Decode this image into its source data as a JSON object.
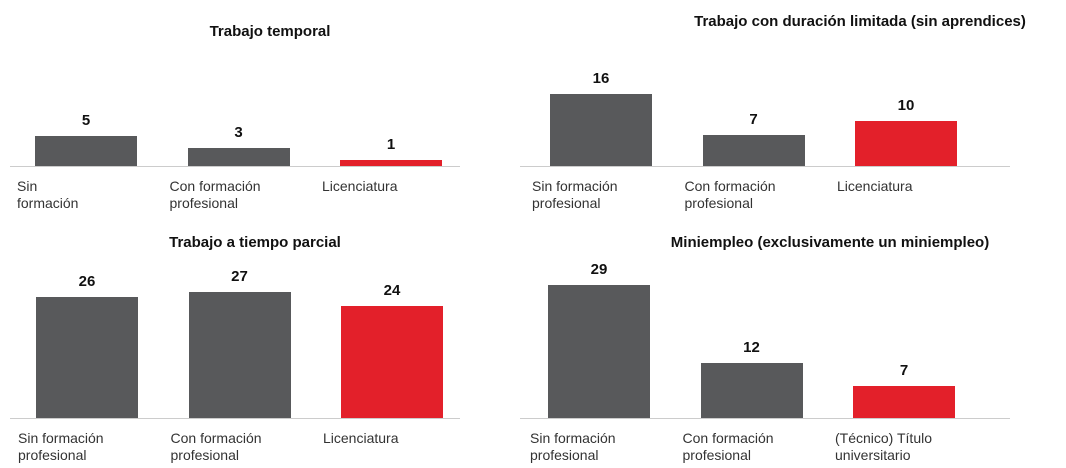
{
  "chart_data": [
    {
      "type": "bar",
      "title": "Trabajo temporal",
      "categories": [
        "Sin formación",
        "Con formación profesional",
        "Licenciatura"
      ],
      "values": [
        5,
        3,
        1
      ],
      "colors": [
        "#58595b",
        "#58595b",
        "#e3202a"
      ]
    },
    {
      "type": "bar",
      "title": "Trabajo con duración limitada (sin aprendices)",
      "categories": [
        "Sin formación profesional",
        "Con formación profesional",
        "Licenciatura"
      ],
      "values": [
        16,
        7,
        10
      ],
      "colors": [
        "#58595b",
        "#58595b",
        "#e3202a"
      ]
    },
    {
      "type": "bar",
      "title": "Trabajo a tiempo parcial",
      "categories": [
        "Sin formación profesional",
        "Con formación profesional",
        "Licenciatura"
      ],
      "values": [
        26,
        27,
        24
      ],
      "colors": [
        "#58595b",
        "#58595b",
        "#e3202a"
      ]
    },
    {
      "type": "bar",
      "title": "Miniempleo (exclusivamente un miniempleo)",
      "categories": [
        "Sin formación profesional",
        "Con formación profesional",
        "(Técnico) Título universitario"
      ],
      "values": [
        29,
        12,
        7
      ],
      "colors": [
        "#58595b",
        "#58595b",
        "#e3202a"
      ]
    }
  ]
}
